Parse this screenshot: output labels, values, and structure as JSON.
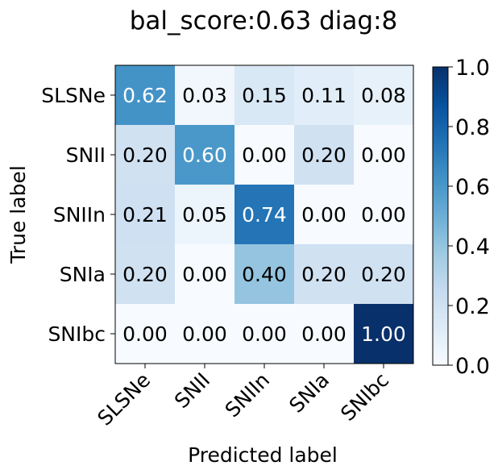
{
  "chart_data": {
    "type": "heatmap",
    "title": "bal_score:0.63 diag:8",
    "xlabel": "Predicted label",
    "ylabel": "True label",
    "x_categories": [
      "SLSNe",
      "SNII",
      "SNIIn",
      "SNIa",
      "SNIbc"
    ],
    "y_categories": [
      "SLSNe",
      "SNII",
      "SNIIn",
      "SNIa",
      "SNIbc"
    ],
    "values": [
      [
        0.62,
        0.03,
        0.15,
        0.11,
        0.08
      ],
      [
        0.2,
        0.6,
        0.0,
        0.2,
        0.0
      ],
      [
        0.21,
        0.05,
        0.74,
        0.0,
        0.0
      ],
      [
        0.2,
        0.0,
        0.4,
        0.2,
        0.2
      ],
      [
        0.0,
        0.0,
        0.0,
        0.0,
        1.0
      ]
    ],
    "labels": [
      [
        "0.62",
        "0.03",
        "0.15",
        "0.11",
        "0.08"
      ],
      [
        "0.20",
        "0.60",
        "0.00",
        "0.20",
        "0.00"
      ],
      [
        "0.21",
        "0.05",
        "0.74",
        "0.00",
        "0.00"
      ],
      [
        "0.20",
        "0.00",
        "0.40",
        "0.20",
        "0.20"
      ],
      [
        "0.00",
        "0.00",
        "0.00",
        "0.00",
        "1.00"
      ]
    ],
    "colormap": "Blues",
    "vlim": [
      0,
      1
    ],
    "colorbar_ticks": [
      "0.0",
      "0.2",
      "0.4",
      "0.6",
      "0.8",
      "1.0"
    ],
    "grid": false
  }
}
